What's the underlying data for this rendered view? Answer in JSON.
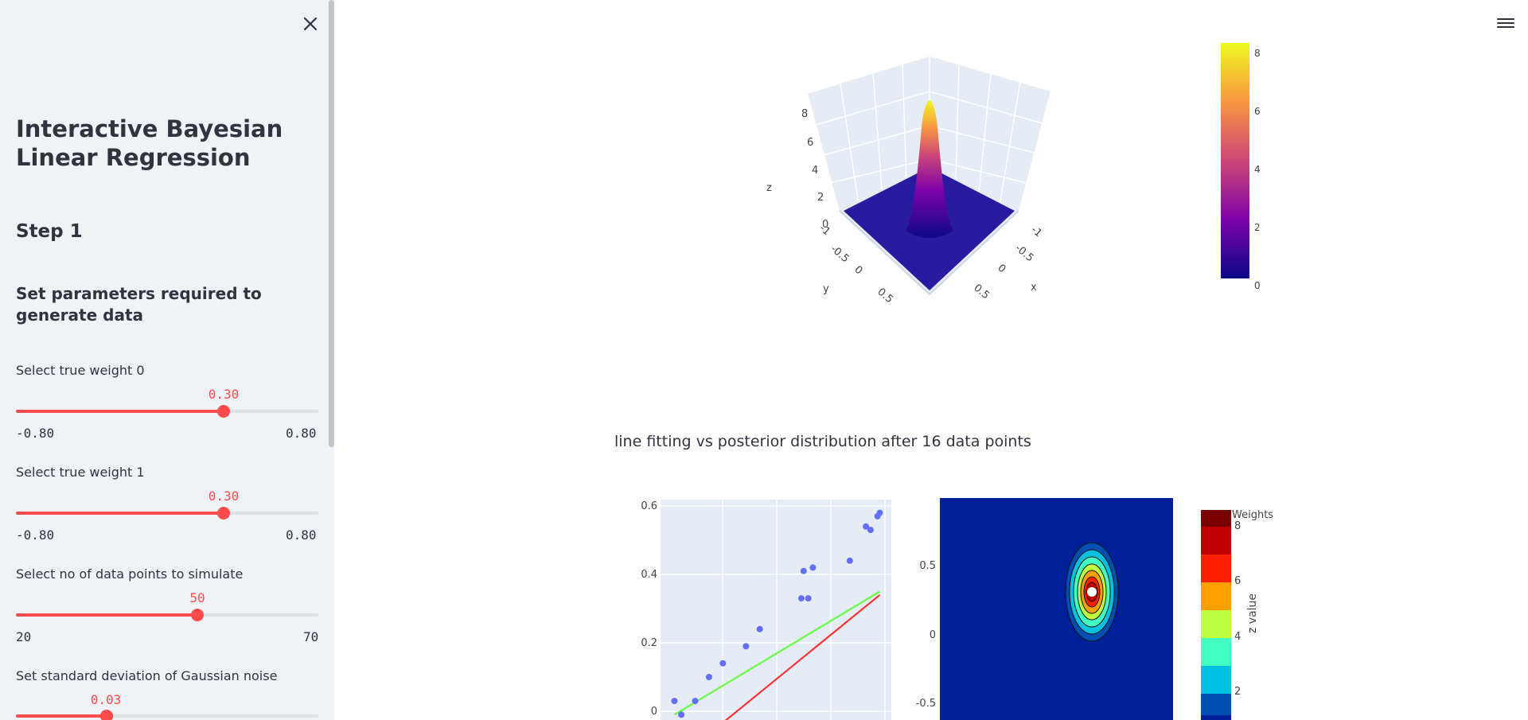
{
  "sidebar": {
    "title": "Interactive Bayesian Linear Regression",
    "step": "Step 1",
    "subtitle": "Set parameters required to generate data",
    "sliders": [
      {
        "label": "Select true weight 0",
        "value": "0.30",
        "min": "-0.80",
        "max": "0.80",
        "fraction": 0.6875
      },
      {
        "label": "Select true weight 1",
        "value": "0.30",
        "min": "-0.80",
        "max": "0.80",
        "fraction": 0.6875
      },
      {
        "label": "Select no of data points to simulate",
        "value": "50",
        "min": "20",
        "max": "70",
        "fraction": 0.6
      },
      {
        "label": "Set standard deviation of Gaussian noise",
        "value": "0.03",
        "min": "",
        "max": "",
        "fraction": 0.3
      }
    ]
  },
  "main": {
    "caption": "line fitting vs posterior distribution after 16 data points"
  },
  "surface_plot": {
    "z_label": "z",
    "x_label": "x",
    "y_label": "y",
    "z_ticks": [
      "8",
      "6",
      "4",
      "2",
      "0"
    ],
    "y_ticks": [
      "-1",
      "-0.5",
      "0",
      "0.5"
    ],
    "x_ticks": [
      "-1",
      "-0.5",
      "0",
      "0.5"
    ],
    "colorbar_ticks": [
      "8",
      "6",
      "4",
      "2",
      "0"
    ],
    "colors": {
      "low": "#0d0887",
      "mid": "#9c179e",
      "high": "#f0f921"
    }
  },
  "chart_data": [
    {
      "type": "scatter",
      "y_ticks": [
        "0.6",
        "0.4",
        "0.2",
        "0"
      ],
      "ylim": [
        -0.02,
        0.62
      ],
      "xlim": [
        0.0,
        1.0
      ],
      "points": [
        {
          "x": 0.06,
          "y": 0.03
        },
        {
          "x": 0.09,
          "y": -0.01
        },
        {
          "x": 0.15,
          "y": 0.03
        },
        {
          "x": 0.21,
          "y": 0.1
        },
        {
          "x": 0.27,
          "y": 0.14
        },
        {
          "x": 0.37,
          "y": 0.19
        },
        {
          "x": 0.43,
          "y": 0.24
        },
        {
          "x": 0.61,
          "y": 0.33
        },
        {
          "x": 0.62,
          "y": 0.41
        },
        {
          "x": 0.64,
          "y": 0.33
        },
        {
          "x": 0.66,
          "y": 0.42
        },
        {
          "x": 0.82,
          "y": 0.44
        },
        {
          "x": 0.89,
          "y": 0.54
        },
        {
          "x": 0.91,
          "y": 0.53
        },
        {
          "x": 0.94,
          "y": 0.57
        },
        {
          "x": 0.95,
          "y": 0.58
        }
      ],
      "lines": [
        {
          "color": "#66ff44",
          "x": [
            0.06,
            0.95
          ],
          "y": [
            -0.01,
            0.35
          ]
        },
        {
          "color": "#ff3333",
          "x": [
            0.24,
            0.95
          ],
          "y": [
            -0.05,
            0.34
          ]
        }
      ]
    },
    {
      "type": "heatmap",
      "y_ticks": [
        "0.5",
        "0",
        "-0.5"
      ],
      "colorbar_title": "Weights",
      "colorbar_axis_title": "z value",
      "colorbar_ticks": [
        "8",
        "6",
        "4",
        "2"
      ]
    }
  ]
}
